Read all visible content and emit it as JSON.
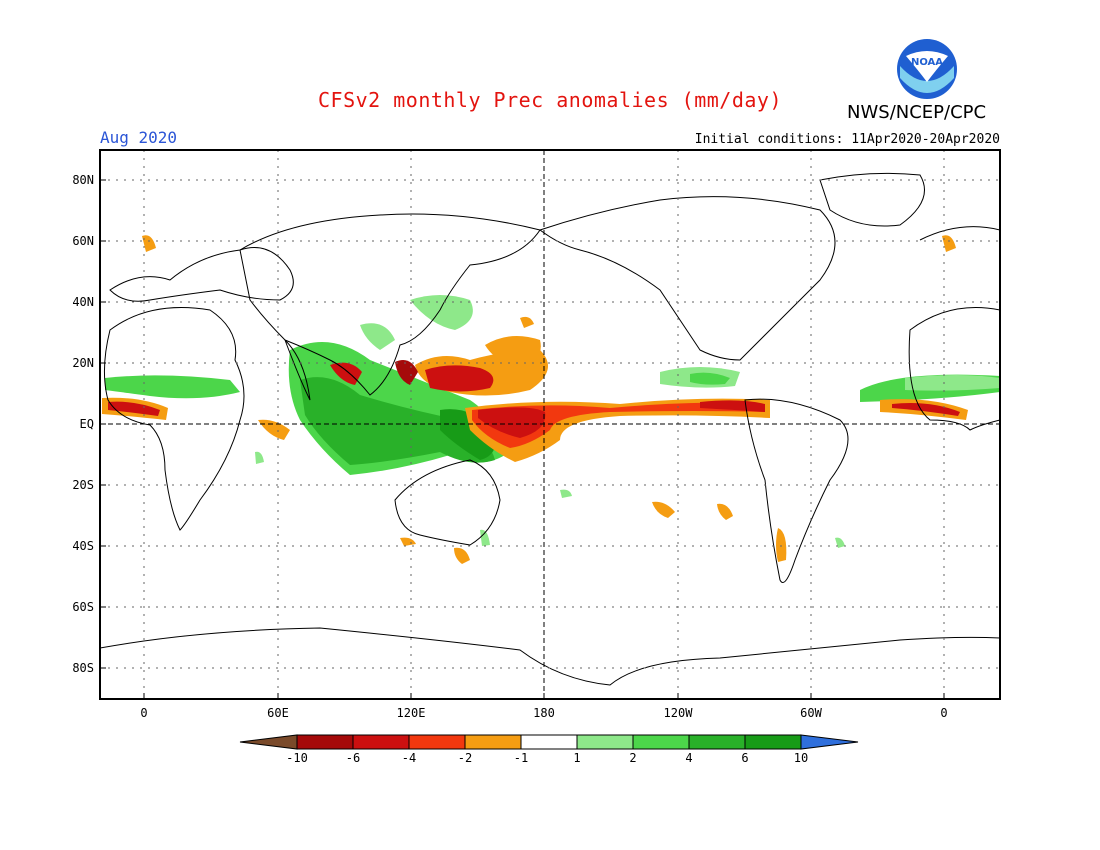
{
  "header": {
    "title": "CFSv2 monthly Prec anomalies (mm/day)",
    "org": "NWS/NCEP/CPC",
    "month": "Aug 2020",
    "initial_conditions": "Initial conditions: 11Apr2020-20Apr2020",
    "logo_text": "NOAA"
  },
  "map": {
    "lat_labels": [
      "80N",
      "60N",
      "40N",
      "20N",
      "EQ",
      "20S",
      "40S",
      "60S",
      "80S"
    ],
    "lon_labels": [
      "0",
      "60E",
      "120E",
      "180",
      "120W",
      "60W",
      "0"
    ]
  },
  "colorbar": {
    "labels": [
      "-10",
      "-6",
      "-4",
      "-2",
      "-1",
      "1",
      "2",
      "4",
      "6",
      "10"
    ],
    "colors": [
      "#7a4a2a",
      "#a50a0a",
      "#cc1010",
      "#f2380f",
      "#f59d12",
      "#ffffff",
      "#8ee88a",
      "#4cd64a",
      "#29b129",
      "#179b17",
      "#2f6fdc"
    ]
  }
}
